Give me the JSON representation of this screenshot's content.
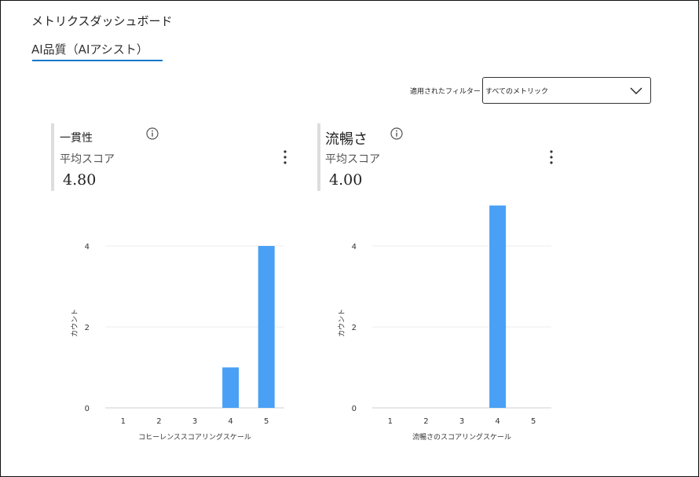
{
  "header": {
    "title": "メトリクスダッシュボード"
  },
  "tabs": [
    {
      "label": "AI品質（AIアシスト）",
      "active": true
    }
  ],
  "filter": {
    "label": "適用されたフィルター",
    "value": "すべてのメトリック"
  },
  "cards": [
    {
      "title": "一貫性",
      "subtitle": "平均スコア",
      "value": "4.80"
    },
    {
      "title": "流暢さ",
      "subtitle": "平均スコア",
      "value": "4.00"
    }
  ],
  "colors": {
    "bar": "#4aa0f5",
    "tab_underline": "#1177cc"
  },
  "chart_data": [
    {
      "type": "bar",
      "categories": [
        "1",
        "2",
        "3",
        "4",
        "5"
      ],
      "values": [
        0,
        0,
        0,
        1,
        4
      ],
      "xlabel": "コヒーレンススコアリングスケール",
      "ylabel": "カウント",
      "yticks": [
        "0",
        "2",
        "4"
      ],
      "ylim": [
        0,
        5
      ]
    },
    {
      "type": "bar",
      "categories": [
        "1",
        "2",
        "3",
        "4",
        "5"
      ],
      "values": [
        0,
        0,
        0,
        5,
        0
      ],
      "xlabel": "流暢さのスコアリングスケール",
      "ylabel": "カウント",
      "yticks": [
        "0",
        "2",
        "4"
      ],
      "ylim": [
        0,
        5
      ]
    }
  ]
}
